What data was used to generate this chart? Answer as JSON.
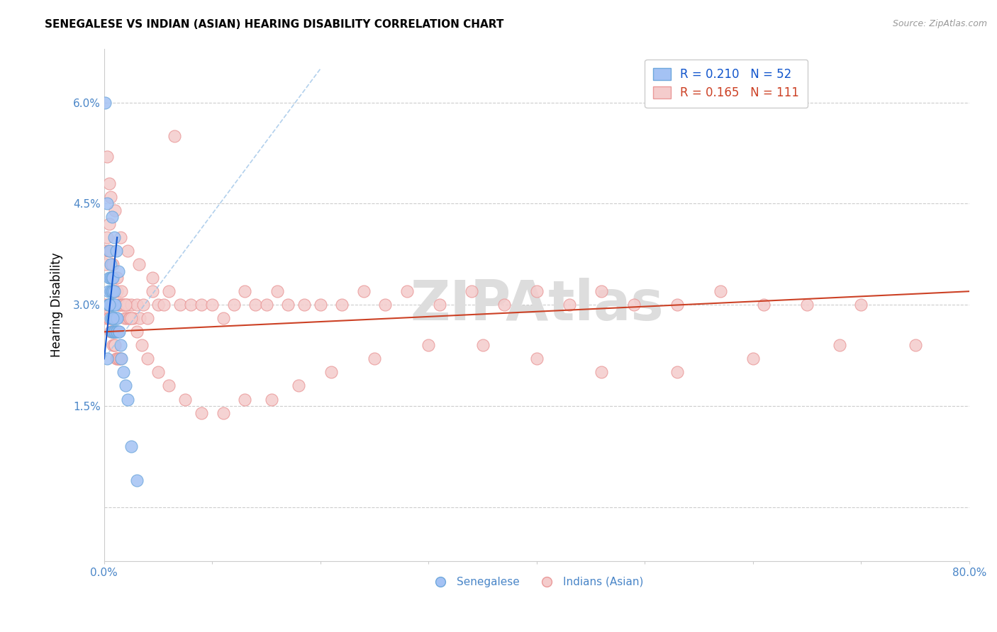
{
  "title": "SENEGALESE VS INDIAN (ASIAN) HEARING DISABILITY CORRELATION CHART",
  "source": "Source: ZipAtlas.com",
  "ylabel": "Hearing Disability",
  "yticks": [
    0.0,
    0.015,
    0.03,
    0.045,
    0.06
  ],
  "ytick_labels": [
    "",
    "1.5%",
    "3.0%",
    "4.5%",
    "6.0%"
  ],
  "xlim": [
    0.0,
    0.8
  ],
  "ylim": [
    -0.008,
    0.068
  ],
  "watermark": "ZIPAtlas",
  "senegalese_x": [
    0.001,
    0.004,
    0.004,
    0.005,
    0.005,
    0.005,
    0.005,
    0.006,
    0.006,
    0.006,
    0.006,
    0.006,
    0.006,
    0.007,
    0.007,
    0.007,
    0.007,
    0.007,
    0.007,
    0.008,
    0.008,
    0.008,
    0.008,
    0.008,
    0.009,
    0.009,
    0.009,
    0.009,
    0.01,
    0.01,
    0.01,
    0.011,
    0.011,
    0.012,
    0.012,
    0.013,
    0.014,
    0.015,
    0.016,
    0.018,
    0.02,
    0.022,
    0.003,
    0.007,
    0.009,
    0.011,
    0.013,
    0.025,
    0.03,
    0.003,
    0.005,
    0.008
  ],
  "senegalese_y": [
    0.06,
    0.032,
    0.03,
    0.038,
    0.034,
    0.03,
    0.03,
    0.036,
    0.034,
    0.032,
    0.03,
    0.03,
    0.028,
    0.034,
    0.032,
    0.03,
    0.03,
    0.028,
    0.026,
    0.034,
    0.032,
    0.03,
    0.028,
    0.026,
    0.032,
    0.03,
    0.028,
    0.026,
    0.03,
    0.028,
    0.026,
    0.028,
    0.026,
    0.028,
    0.026,
    0.026,
    0.026,
    0.024,
    0.022,
    0.02,
    0.018,
    0.016,
    0.022,
    0.043,
    0.04,
    0.038,
    0.035,
    0.009,
    0.004,
    0.045,
    0.03,
    0.028
  ],
  "indian_x": [
    0.001,
    0.001,
    0.002,
    0.002,
    0.003,
    0.003,
    0.004,
    0.004,
    0.005,
    0.005,
    0.006,
    0.006,
    0.007,
    0.007,
    0.008,
    0.008,
    0.009,
    0.009,
    0.01,
    0.01,
    0.011,
    0.011,
    0.012,
    0.012,
    0.013,
    0.013,
    0.014,
    0.014,
    0.015,
    0.015,
    0.016,
    0.017,
    0.018,
    0.019,
    0.02,
    0.021,
    0.022,
    0.023,
    0.024,
    0.025,
    0.027,
    0.03,
    0.033,
    0.036,
    0.04,
    0.045,
    0.05,
    0.055,
    0.06,
    0.065,
    0.07,
    0.08,
    0.09,
    0.1,
    0.11,
    0.12,
    0.13,
    0.14,
    0.15,
    0.16,
    0.17,
    0.185,
    0.2,
    0.22,
    0.24,
    0.26,
    0.28,
    0.31,
    0.34,
    0.37,
    0.4,
    0.43,
    0.46,
    0.49,
    0.53,
    0.57,
    0.61,
    0.65,
    0.7,
    0.005,
    0.008,
    0.012,
    0.016,
    0.02,
    0.025,
    0.03,
    0.035,
    0.04,
    0.05,
    0.06,
    0.075,
    0.09,
    0.11,
    0.13,
    0.155,
    0.18,
    0.21,
    0.25,
    0.3,
    0.35,
    0.4,
    0.46,
    0.53,
    0.6,
    0.68,
    0.75,
    0.003,
    0.006,
    0.01,
    0.015,
    0.022,
    0.032,
    0.045
  ],
  "indian_y": [
    0.038,
    0.03,
    0.036,
    0.028,
    0.04,
    0.03,
    0.038,
    0.028,
    0.042,
    0.028,
    0.038,
    0.026,
    0.036,
    0.026,
    0.034,
    0.024,
    0.032,
    0.024,
    0.032,
    0.024,
    0.034,
    0.022,
    0.032,
    0.022,
    0.03,
    0.022,
    0.03,
    0.022,
    0.03,
    0.022,
    0.03,
    0.03,
    0.03,
    0.028,
    0.03,
    0.028,
    0.03,
    0.028,
    0.028,
    0.03,
    0.028,
    0.03,
    0.028,
    0.03,
    0.028,
    0.032,
    0.03,
    0.03,
    0.032,
    0.055,
    0.03,
    0.03,
    0.03,
    0.03,
    0.028,
    0.03,
    0.032,
    0.03,
    0.03,
    0.032,
    0.03,
    0.03,
    0.03,
    0.03,
    0.032,
    0.03,
    0.032,
    0.03,
    0.032,
    0.03,
    0.032,
    0.03,
    0.032,
    0.03,
    0.03,
    0.032,
    0.03,
    0.03,
    0.03,
    0.048,
    0.036,
    0.034,
    0.032,
    0.03,
    0.028,
    0.026,
    0.024,
    0.022,
    0.02,
    0.018,
    0.016,
    0.014,
    0.014,
    0.016,
    0.016,
    0.018,
    0.02,
    0.022,
    0.024,
    0.024,
    0.022,
    0.02,
    0.02,
    0.022,
    0.024,
    0.024,
    0.052,
    0.046,
    0.044,
    0.04,
    0.038,
    0.036,
    0.034
  ],
  "senegalese_trendline_solid_x0": 0.0,
  "senegalese_trendline_solid_x1": 0.012,
  "senegalese_trendline_solid_y0": 0.022,
  "senegalese_trendline_solid_y1": 0.04,
  "senegalese_trendline_dashed_x0": 0.0,
  "senegalese_trendline_dashed_x1": 0.2,
  "senegalese_trendline_dashed_y0": 0.022,
  "senegalese_trendline_dashed_y1": 0.065,
  "indian_trendline_x0": 0.0,
  "indian_trendline_x1": 0.8,
  "indian_trendline_y0": 0.026,
  "indian_trendline_y1": 0.032,
  "blue_scatter_color": "#a4c2f4",
  "blue_scatter_edge": "#6fa8dc",
  "pink_scatter_color": "#f4cccc",
  "pink_scatter_edge": "#ea9999",
  "blue_line_color": "#1155cc",
  "pink_line_color": "#cc4125",
  "blue_dashed_color": "#9fc5e8",
  "axis_label_color": "#4a86c8",
  "grid_color": "#cccccc",
  "title_color": "#000000",
  "source_color": "#999999",
  "watermark_color": "#dddddd",
  "legend_blue_text_color": "#1155cc",
  "legend_pink_text_color": "#cc4125"
}
